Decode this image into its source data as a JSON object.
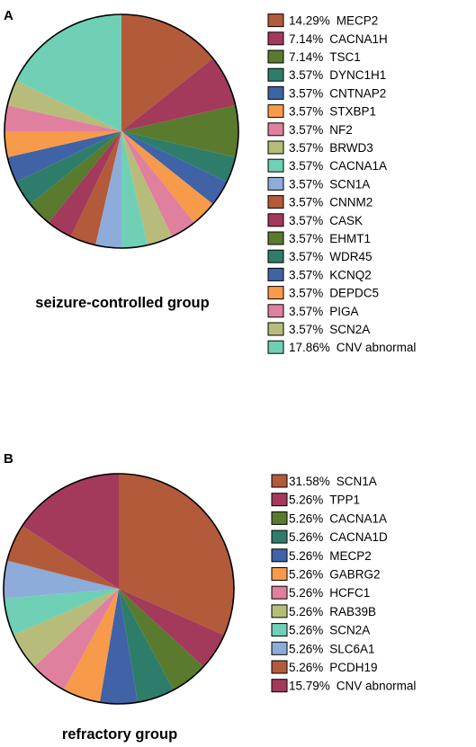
{
  "chart_data": [
    {
      "type": "pie",
      "panel_label": "A",
      "group_label": "seizure-controlled group",
      "slices": [
        {
          "pct_label": "14.29%",
          "name": "MECP2",
          "value": 14.29,
          "color": "#B35A3A"
        },
        {
          "pct_label": "7.14%",
          "name": "CACNA1H",
          "value": 7.14,
          "color": "#A33A5C"
        },
        {
          "pct_label": "7.14%",
          "name": "TSC1",
          "value": 7.14,
          "color": "#5A7A2E"
        },
        {
          "pct_label": "3.57%",
          "name": "DYNC1H1",
          "value": 3.57,
          "color": "#2E7D6A"
        },
        {
          "pct_label": "3.57%",
          "name": "CNTNAP2",
          "value": 3.57,
          "color": "#3F63A6"
        },
        {
          "pct_label": "3.57%",
          "name": "STXBP1",
          "value": 3.57,
          "color": "#F79A4A"
        },
        {
          "pct_label": "3.57%",
          "name": "NF2",
          "value": 3.57,
          "color": "#E0809E"
        },
        {
          "pct_label": "3.57%",
          "name": "BRWD3",
          "value": 3.57,
          "color": "#B7BC7A"
        },
        {
          "pct_label": "3.57%",
          "name": "CACNA1A",
          "value": 3.57,
          "color": "#6FD0B5"
        },
        {
          "pct_label": "3.57%",
          "name": "SCN1A",
          "value": 3.57,
          "color": "#8EACD9"
        },
        {
          "pct_label": "3.57%",
          "name": "CNNM2",
          "value": 3.57,
          "color": "#B35A3A"
        },
        {
          "pct_label": "3.57%",
          "name": "CASK",
          "value": 3.57,
          "color": "#A33A5C"
        },
        {
          "pct_label": "3.57%",
          "name": "EHMT1",
          "value": 3.57,
          "color": "#5A7A2E"
        },
        {
          "pct_label": "3.57%",
          "name": "WDR45",
          "value": 3.57,
          "color": "#2E7D6A"
        },
        {
          "pct_label": "3.57%",
          "name": "KCNQ2",
          "value": 3.57,
          "color": "#3F63A6"
        },
        {
          "pct_label": "3.57%",
          "name": "DEPDC5",
          "value": 3.57,
          "color": "#F79A4A"
        },
        {
          "pct_label": "3.57%",
          "name": "PIGA",
          "value": 3.57,
          "color": "#E0809E"
        },
        {
          "pct_label": "3.57%",
          "name": "SCN2A",
          "value": 3.57,
          "color": "#B7BC7A"
        },
        {
          "pct_label": "17.86%",
          "name": "CNV abnormal",
          "value": 17.86,
          "color": "#6FD0B5"
        }
      ]
    },
    {
      "type": "pie",
      "panel_label": "B",
      "group_label": "refractory group",
      "slices": [
        {
          "pct_label": "31.58%",
          "name": "SCN1A",
          "value": 31.58,
          "color": "#B35A3A"
        },
        {
          "pct_label": "5.26%",
          "name": "TPP1",
          "value": 5.26,
          "color": "#A33A5C"
        },
        {
          "pct_label": "5.26%",
          "name": "CACNA1A",
          "value": 5.26,
          "color": "#5A7A2E"
        },
        {
          "pct_label": "5.26%",
          "name": "CACNA1D",
          "value": 5.26,
          "color": "#2E7D6A"
        },
        {
          "pct_label": "5.26%",
          "name": "MECP2",
          "value": 5.26,
          "color": "#3F63A6"
        },
        {
          "pct_label": "5.26%",
          "name": "GABRG2",
          "value": 5.26,
          "color": "#F79A4A"
        },
        {
          "pct_label": "5.26%",
          "name": "HCFC1",
          "value": 5.26,
          "color": "#E0809E"
        },
        {
          "pct_label": "5.26%",
          "name": "RAB39B",
          "value": 5.26,
          "color": "#B7BC7A"
        },
        {
          "pct_label": "5.26%",
          "name": "SCN2A",
          "value": 5.26,
          "color": "#6FD0B5"
        },
        {
          "pct_label": "5.26%",
          "name": "SLC6A1",
          "value": 5.26,
          "color": "#8EACD9"
        },
        {
          "pct_label": "5.26%",
          "name": "PCDH19",
          "value": 5.26,
          "color": "#B35A3A"
        },
        {
          "pct_label": "15.79%",
          "name": "CNV abnormal",
          "value": 15.79,
          "color": "#A33A5C"
        }
      ]
    }
  ]
}
